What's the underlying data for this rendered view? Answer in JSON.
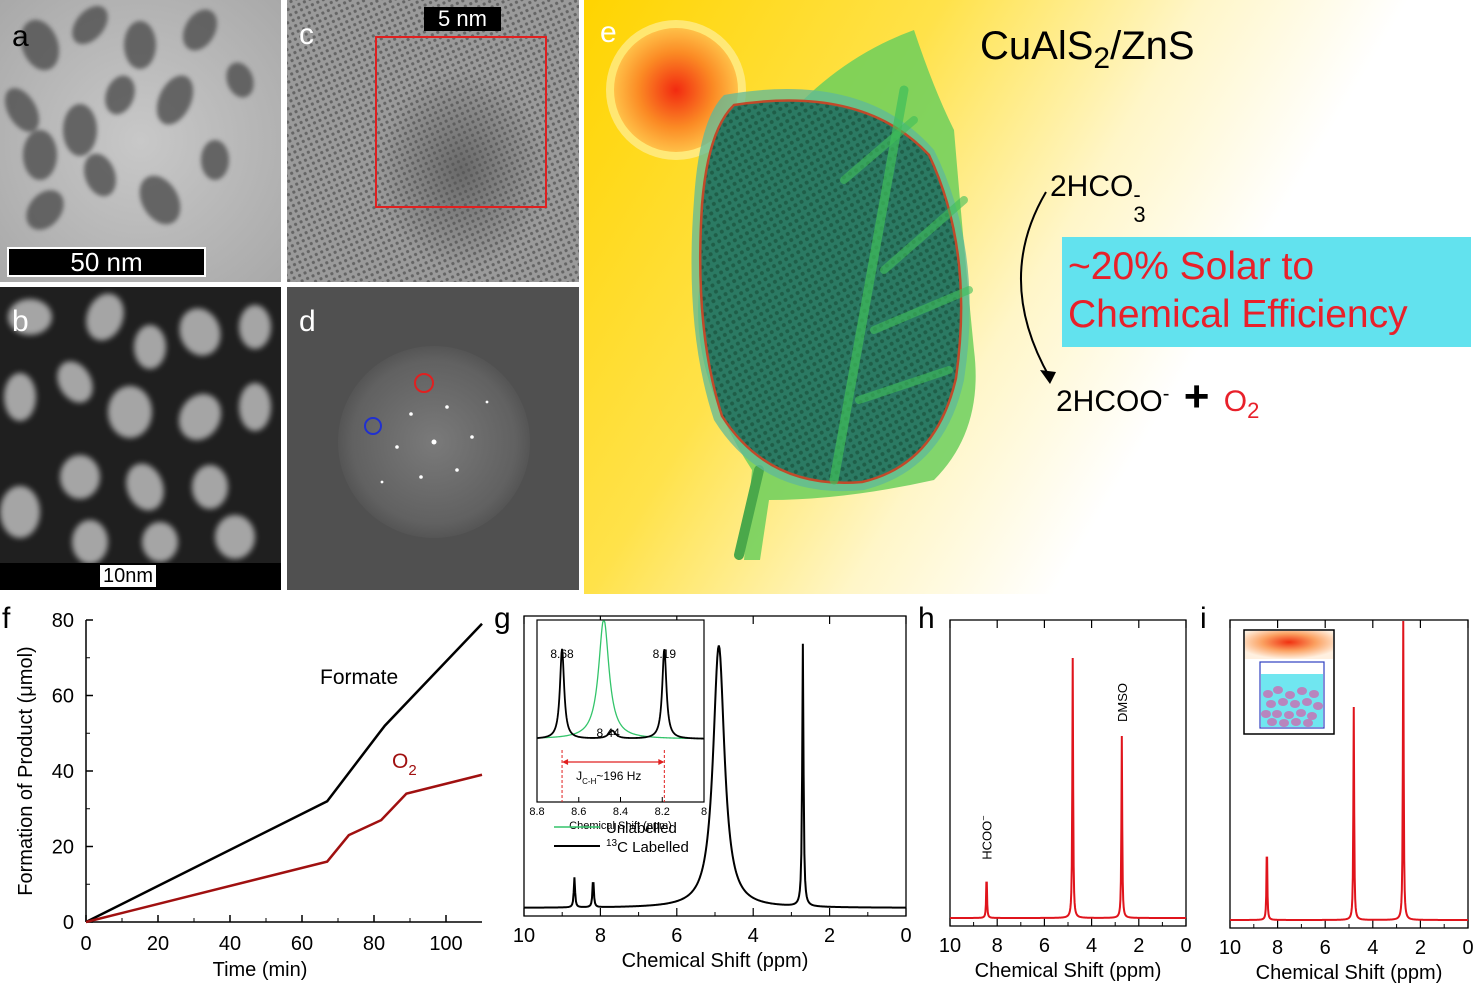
{
  "panels": {
    "a": {
      "label": "a",
      "scalebar": "50 nm"
    },
    "b": {
      "label": "b",
      "scalebar": "10nm"
    },
    "c": {
      "label": "c",
      "scalebar": "5 nm"
    },
    "d": {
      "label": "d"
    },
    "e": {
      "label": "e",
      "title_main": "CuAlS",
      "title_sub": "2",
      "title_tail": "/ZnS",
      "reactant": "2HCO",
      "reactant_sub": "3",
      "reactant_sup": "-",
      "product1": "2HCOO",
      "product1_sup": "-",
      "plus": "+",
      "product2": "O",
      "product2_sub": "2",
      "efficiency_line1": "~20% Solar to",
      "efficiency_line2": "Chemical Efficiency",
      "colors": {
        "efficiency_box": "#62e2ee",
        "efficiency_text": "#e8202a",
        "o2": "#e8202a"
      }
    },
    "f": {
      "label": "f"
    },
    "g": {
      "label": "g"
    },
    "h": {
      "label": "h"
    },
    "i": {
      "label": "i"
    }
  },
  "chart_data": [
    {
      "panel": "f",
      "type": "line",
      "xlabel": "Time (min)",
      "ylabel": "Formation of Product (μmol)",
      "xlim": [
        0,
        110
      ],
      "ylim": [
        0,
        80
      ],
      "xticks": [
        0,
        20,
        40,
        60,
        80,
        100
      ],
      "yticks": [
        0,
        20,
        40,
        60,
        80
      ],
      "series": [
        {
          "name": "Formate",
          "color": "#000000",
          "x": [
            0,
            67,
            83,
            110
          ],
          "y": [
            0,
            32,
            52,
            79
          ]
        },
        {
          "name": "O",
          "name_sub": "2",
          "color": "#a01010",
          "x": [
            0,
            67,
            73,
            82,
            89,
            110
          ],
          "y": [
            0,
            16,
            23,
            27,
            34,
            39
          ]
        }
      ]
    },
    {
      "panel": "g",
      "type": "line",
      "xlabel": "Chemical Shift (ppm)",
      "xlim": [
        10,
        0
      ],
      "xticks": [
        10,
        8,
        6,
        4,
        2,
        0
      ],
      "peaks": [
        {
          "ppm": 8.68,
          "height": 0.12
        },
        {
          "ppm": 8.19,
          "height": 0.12
        },
        {
          "ppm": 4.9,
          "height": 1.05,
          "width": 0.18
        },
        {
          "ppm": 2.7,
          "height": 1.05
        }
      ],
      "inset": {
        "xlabel": "Chemical Shift (ppm)",
        "xlim": [
          8.8,
          8.0
        ],
        "xticks": [
          "8.8",
          "8.6",
          "8.4",
          "8.2",
          "8"
        ],
        "peak_labels": [
          "8.68",
          "8.44",
          "8.19"
        ],
        "coupling_label": "J",
        "coupling_sub": "C-H",
        "coupling_value": "~196 Hz",
        "series": [
          {
            "name": "Unlabelled",
            "color": "#33c46a"
          },
          {
            "name": "C Labelled",
            "name_sup": "13",
            "color": "#000000"
          }
        ]
      }
    },
    {
      "panel": "h",
      "type": "line",
      "xlabel": "Chemical Shift (ppm)",
      "xlim": [
        10,
        0
      ],
      "xticks": [
        10,
        8,
        6,
        4,
        2,
        0
      ],
      "color": "#e0141c",
      "peaks": [
        {
          "ppm": 8.45,
          "height": 0.17,
          "label": "HCOO",
          "label_sup": "−"
        },
        {
          "ppm": 4.8,
          "height": 1.0
        },
        {
          "ppm": 2.72,
          "height": 0.7,
          "label": "DMSO"
        }
      ]
    },
    {
      "panel": "i",
      "type": "line",
      "xlabel": "Chemical Shift (ppm)",
      "xlim": [
        10,
        0
      ],
      "xticks": [
        10,
        8,
        6,
        4,
        2,
        0
      ],
      "color": "#e0141c",
      "peaks": [
        {
          "ppm": 8.45,
          "height": 0.26
        },
        {
          "ppm": 4.8,
          "height": 0.71
        },
        {
          "ppm": 2.72,
          "height": 1.0
        }
      ]
    }
  ]
}
